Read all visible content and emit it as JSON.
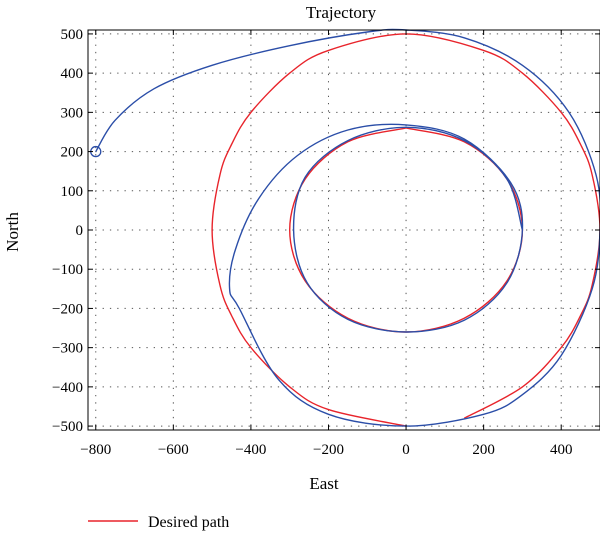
{
  "chart_data": {
    "type": "line",
    "title": "Trajectory",
    "xlabel": "East",
    "ylabel": "North",
    "xlim": [
      -820,
      500
    ],
    "ylim": [
      -510,
      510
    ],
    "xticks": [
      -800,
      -600,
      -400,
      -200,
      0,
      200,
      400
    ],
    "yticks": [
      500,
      400,
      300,
      200,
      100,
      0,
      -100,
      -200,
      -300,
      -400,
      -500
    ],
    "grid": true,
    "legend_position": "bottom-left",
    "legend": [
      {
        "label": "Desired path",
        "color": "#e8242b"
      }
    ],
    "start_marker": {
      "x": -800,
      "y": 200
    },
    "series": [
      {
        "name": "Desired path",
        "color": "#e8242b",
        "x": [
          0,
          150,
          260,
          300,
          260,
          150,
          0,
          -150,
          -260,
          -300,
          -260,
          -150,
          0,
          150,
          300,
          400,
          450,
          480,
          500,
          480,
          450,
          400,
          300,
          200,
          0,
          -200,
          -300,
          -400,
          -450,
          -480,
          -500,
          -480,
          -450,
          -400,
          -300,
          -200,
          0
        ],
        "y": [
          260,
          225,
          130,
          0,
          -130,
          -225,
          -260,
          -225,
          -130,
          0,
          130,
          225,
          260,
          -480,
          -400,
          -300,
          -218,
          -140,
          0,
          140,
          218,
          300,
          400,
          458,
          500,
          458,
          400,
          300,
          218,
          140,
          0,
          -140,
          -218,
          -300,
          -400,
          -458,
          -500
        ]
      },
      {
        "x": [
          -800,
          -750,
          -650,
          -500,
          -300,
          -100,
          0,
          150,
          300,
          420,
          490,
          500,
          480,
          400,
          300,
          200,
          0,
          -200,
          -330,
          -430,
          -455,
          -440,
          -380,
          -280,
          -150,
          0,
          150,
          270,
          300,
          260,
          150,
          0,
          -150,
          -255,
          -290,
          -260,
          -150,
          0,
          150,
          260,
          300
        ],
        "y": [
          200,
          280,
          360,
          420,
          470,
          505,
          510,
          490,
          420,
          300,
          140,
          0,
          -150,
          -320,
          -420,
          -470,
          -500,
          -470,
          -380,
          -200,
          -150,
          -50,
          80,
          190,
          255,
          268,
          232,
          120,
          0,
          -135,
          -230,
          -260,
          -228,
          -135,
          0,
          135,
          228,
          262,
          228,
          130,
          0
        ]
      }
    ]
  }
}
